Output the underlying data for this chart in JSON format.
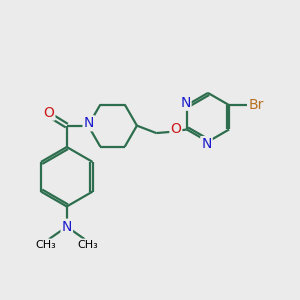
{
  "bg_color": "#ebebeb",
  "bond_color": "#2d6e4e",
  "N_color": "#1a1acc",
  "O_color": "#cc1a1a",
  "Br_color": "#b87020",
  "line_width": 1.6,
  "font_size": 8.5,
  "xlim": [
    0,
    10
  ],
  "ylim": [
    0,
    10
  ]
}
